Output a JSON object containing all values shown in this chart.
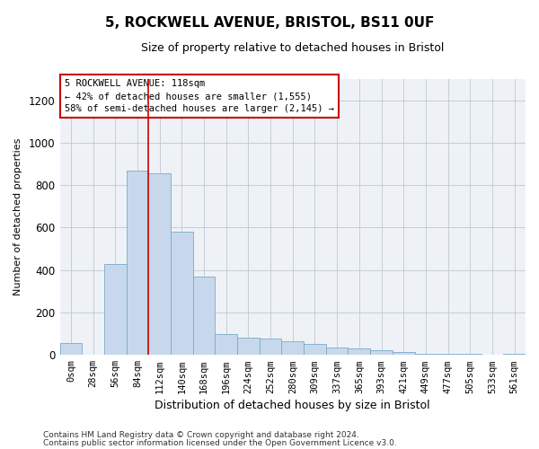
{
  "title": "5, ROCKWELL AVENUE, BRISTOL, BS11 0UF",
  "subtitle": "Size of property relative to detached houses in Bristol",
  "xlabel": "Distribution of detached houses by size in Bristol",
  "ylabel": "Number of detached properties",
  "bar_color": "#c8d8ec",
  "bar_edge_color": "#7aaac8",
  "annotation_box_color": "#cc0000",
  "vline_color": "#cc0000",
  "categories": [
    "0sqm",
    "28sqm",
    "56sqm",
    "84sqm",
    "112sqm",
    "140sqm",
    "168sqm",
    "196sqm",
    "224sqm",
    "252sqm",
    "280sqm",
    "309sqm",
    "337sqm",
    "365sqm",
    "393sqm",
    "421sqm",
    "449sqm",
    "477sqm",
    "505sqm",
    "533sqm",
    "561sqm"
  ],
  "values": [
    55,
    0,
    430,
    870,
    855,
    580,
    370,
    100,
    80,
    75,
    65,
    50,
    35,
    30,
    20,
    15,
    5,
    5,
    3,
    1,
    3
  ],
  "property_label": "5 ROCKWELL AVENUE: 118sqm",
  "pct_smaller": "42% of detached houses are smaller (1,555)",
  "pct_larger": "58% of semi-detached houses are larger (2,145)",
  "ylim": [
    0,
    1300
  ],
  "yticks": [
    0,
    200,
    400,
    600,
    800,
    1000,
    1200
  ],
  "vline_x": 3.5,
  "footer1": "Contains HM Land Registry data © Crown copyright and database right 2024.",
  "footer2": "Contains public sector information licensed under the Open Government Licence v3.0."
}
